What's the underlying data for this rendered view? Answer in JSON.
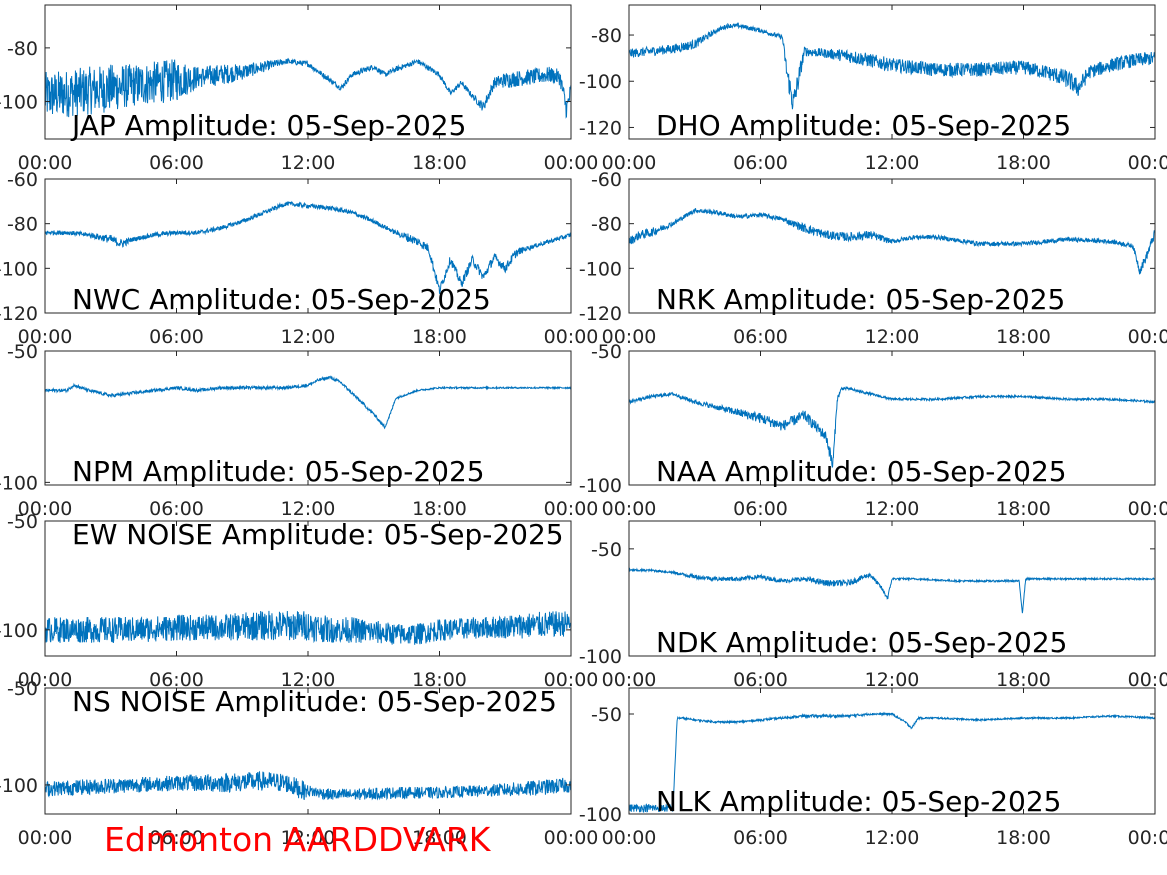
{
  "footer_label": "Edmonton AARDDVARK",
  "colors": {
    "trace": "#0072bd",
    "axes": "#262626",
    "footer": "#ff0000"
  },
  "chart_data": [
    {
      "id": "jap",
      "type": "line",
      "title": "JAP Amplitude: 05-Sep-2025",
      "xlim": [
        0,
        24
      ],
      "ylim": [
        -114,
        -64
      ],
      "x_ticks": [
        "00:00",
        "06:00",
        "12:00",
        "18:00",
        "00:00"
      ],
      "y_ticks": [
        {
          "v": -80,
          "label": "-80"
        },
        {
          "v": -100,
          "label": "-100"
        }
      ],
      "x": [
        0,
        1,
        2,
        3,
        4,
        5,
        6,
        7,
        8,
        9,
        10,
        11,
        12,
        13,
        13.5,
        14,
        15,
        15.5,
        16,
        17,
        18,
        18.5,
        19,
        19.5,
        20,
        20.5,
        21,
        22,
        23,
        23.5,
        23.8,
        24
      ],
      "y": [
        -98,
        -97,
        -96,
        -95,
        -94,
        -93,
        -92,
        -91,
        -90,
        -89,
        -87,
        -85,
        -86,
        -92,
        -95,
        -90,
        -87,
        -90,
        -88,
        -85,
        -90,
        -97,
        -93,
        -98,
        -102,
        -93,
        -92,
        -91,
        -90,
        -91,
        -103,
        -96
      ],
      "noise": [
        9,
        9,
        9,
        9,
        8,
        8,
        8,
        4,
        4,
        3,
        2,
        1,
        1,
        1,
        1,
        1,
        1,
        1,
        1,
        1,
        1,
        1,
        1,
        1,
        2,
        2,
        3,
        3,
        3,
        3,
        4,
        4
      ]
    },
    {
      "id": "dho",
      "type": "line",
      "title": "DHO Amplitude: 05-Sep-2025",
      "xlim": [
        0,
        24
      ],
      "ylim": [
        -125,
        -67
      ],
      "x_ticks": [
        "00:00",
        "06:00",
        "12:00",
        "18:00",
        "00:00"
      ],
      "y_ticks": [
        {
          "v": -80,
          "label": "-80"
        },
        {
          "v": -100,
          "label": "-100"
        },
        {
          "v": -120,
          "label": "-120"
        }
      ],
      "x": [
        0,
        1,
        2,
        3,
        4,
        4.5,
        5,
        6,
        7,
        7.2,
        7.5,
        7.8,
        8,
        9,
        10,
        11,
        12,
        14,
        16,
        18,
        19,
        20,
        20.5,
        21,
        22,
        23,
        24
      ],
      "y": [
        -88,
        -87,
        -86,
        -84,
        -78,
        -76,
        -76,
        -78,
        -81,
        -96,
        -110,
        -96,
        -87,
        -88,
        -89,
        -91,
        -93,
        -95,
        -95,
        -94,
        -96,
        -99,
        -103,
        -96,
        -93,
        -91,
        -90
      ],
      "noise": [
        2,
        2,
        2,
        2,
        1,
        1,
        1,
        1,
        1,
        4,
        6,
        4,
        2,
        2,
        3,
        3,
        3,
        3,
        3,
        3,
        3,
        4,
        4,
        3,
        3,
        3,
        3
      ]
    },
    {
      "id": "nwc",
      "type": "line",
      "title": "NWC Amplitude: 05-Sep-2025",
      "xlim": [
        0,
        24
      ],
      "ylim": [
        -120,
        -60
      ],
      "x_ticks": [
        "00:00",
        "06:00",
        "12:00",
        "18:00",
        "00:00"
      ],
      "y_ticks": [
        {
          "v": -60,
          "label": "-60"
        },
        {
          "v": -80,
          "label": "-80"
        },
        {
          "v": -100,
          "label": "-100"
        },
        {
          "v": -120,
          "label": "-120"
        }
      ],
      "x": [
        0,
        1,
        2,
        3,
        3.5,
        4,
        5,
        6,
        7,
        8,
        9,
        10,
        11,
        12,
        13,
        14,
        15,
        16,
        16.5,
        17,
        17.5,
        18,
        18.5,
        19,
        19.5,
        20,
        20.5,
        21,
        21.5,
        22,
        23,
        24
      ],
      "y": [
        -84,
        -84,
        -85,
        -87,
        -89,
        -87,
        -85,
        -84,
        -84,
        -82,
        -79,
        -75,
        -71,
        -72,
        -73,
        -75,
        -79,
        -84,
        -86,
        -88,
        -91,
        -110,
        -96,
        -107,
        -96,
        -104,
        -95,
        -100,
        -93,
        -91,
        -88,
        -85
      ],
      "noise": [
        1,
        1,
        1,
        2,
        2,
        1,
        1,
        1,
        1,
        1,
        1,
        1,
        1,
        1,
        1,
        1,
        1,
        1,
        2,
        2,
        2,
        2,
        2,
        2,
        2,
        2,
        2,
        2,
        2,
        1,
        1,
        1
      ]
    },
    {
      "id": "nrk",
      "type": "line",
      "title": "NRK Amplitude: 05-Sep-2025",
      "xlim": [
        0,
        24
      ],
      "ylim": [
        -120,
        -60
      ],
      "x_ticks": [
        "00:00",
        "06:00",
        "12:00",
        "18:00",
        "00:00"
      ],
      "y_ticks": [
        {
          "v": -60,
          "label": "-60"
        },
        {
          "v": -80,
          "label": "-80"
        },
        {
          "v": -100,
          "label": "-100"
        },
        {
          "v": -120,
          "label": "-120"
        }
      ],
      "x": [
        0,
        0.5,
        1,
        2,
        3,
        4,
        5,
        6,
        7,
        8,
        9,
        10,
        11,
        12,
        13,
        14,
        16,
        18,
        20,
        22,
        23,
        23.3,
        23.6,
        24
      ],
      "y": [
        -88,
        -85,
        -84,
        -80,
        -74,
        -75,
        -77,
        -76,
        -78,
        -82,
        -85,
        -86,
        -85,
        -88,
        -86,
        -86,
        -89,
        -89,
        -87,
        -88,
        -90,
        -101,
        -95,
        -84
      ],
      "noise": [
        2,
        2,
        2,
        1,
        1,
        1,
        1,
        1,
        1,
        2,
        2,
        2,
        2,
        1,
        1,
        1,
        1,
        1,
        1,
        1,
        1,
        2,
        2,
        2
      ]
    },
    {
      "id": "npm",
      "type": "line",
      "title": "NPM Amplitude: 05-Sep-2025",
      "xlim": [
        0,
        24
      ],
      "ylim": [
        -101,
        -50
      ],
      "x_ticks": [
        "00:00",
        "06:00",
        "12:00",
        "18:00",
        "00:00"
      ],
      "y_ticks": [
        {
          "v": -50,
          "label": "-50"
        },
        {
          "v": -100,
          "label": "-100"
        }
      ],
      "x": [
        0,
        1,
        1.3,
        2,
        3,
        4,
        5,
        6,
        7,
        8,
        9,
        10,
        11,
        12,
        12.5,
        13,
        13.5,
        14,
        14.5,
        15,
        15.5,
        15.8,
        16,
        17,
        18,
        19,
        20,
        21,
        22,
        23,
        24
      ],
      "y": [
        -65,
        -65,
        -63,
        -65,
        -67,
        -66,
        -65,
        -64,
        -65,
        -64,
        -64,
        -64,
        -64,
        -63,
        -61,
        -60,
        -62,
        -66,
        -70,
        -74,
        -79,
        -73,
        -68,
        -65,
        -64,
        -64,
        -64,
        -64,
        -64,
        -64,
        -64
      ],
      "noise": [
        0.6,
        0.6,
        0.6,
        0.6,
        0.6,
        0.6,
        0.6,
        0.6,
        0.6,
        0.6,
        0.6,
        0.6,
        0.6,
        0.6,
        0.6,
        0.6,
        0.6,
        0.6,
        0.6,
        0.6,
        0.6,
        0.6,
        0.4,
        0.3,
        0.3,
        0.3,
        0.3,
        0.3,
        0.3,
        0.3,
        0.3
      ]
    },
    {
      "id": "naa",
      "type": "line",
      "title": "NAA Amplitude: 05-Sep-2025",
      "xlim": [
        0,
        24
      ],
      "ylim": [
        -100,
        -50
      ],
      "x_ticks": [
        "00:00",
        "06:00",
        "12:00",
        "18:00",
        "00:00"
      ],
      "y_ticks": [
        {
          "v": -50,
          "label": "-50"
        },
        {
          "v": -100,
          "label": "-100"
        }
      ],
      "x": [
        0,
        1,
        2,
        3,
        4,
        5,
        6,
        7,
        7.5,
        8,
        8.5,
        9,
        9.3,
        9.5,
        9.7,
        10,
        11,
        12,
        14,
        16,
        18,
        20,
        22,
        24
      ],
      "y": [
        -69,
        -67,
        -66,
        -69,
        -71,
        -73,
        -75,
        -78,
        -76,
        -74,
        -78,
        -82,
        -93,
        -68,
        -64,
        -64,
        -66,
        -68,
        -68,
        -67,
        -67,
        -68,
        -68,
        -69
      ],
      "noise": [
        0.6,
        0.6,
        0.6,
        0.8,
        1,
        1.5,
        2,
        2,
        2,
        2,
        2,
        2,
        3,
        1,
        0.6,
        0.5,
        0.5,
        0.4,
        0.4,
        0.4,
        0.4,
        0.4,
        0.4,
        0.4
      ]
    },
    {
      "id": "ew",
      "type": "line",
      "title": "EW NOISE Amplitude: 05-Sep-2025",
      "xlim": [
        0,
        24
      ],
      "ylim": [
        -112,
        -50
      ],
      "x_ticks": [
        "00:00",
        "06:00",
        "12:00",
        "18:00",
        "00:00"
      ],
      "y_ticks": [
        {
          "v": -50,
          "label": "-50"
        },
        {
          "v": -100,
          "label": "-100"
        }
      ],
      "x": [
        0,
        2,
        4,
        6,
        8,
        10,
        12,
        13,
        14,
        16,
        17,
        18,
        20,
        22,
        24
      ],
      "y": [
        -100,
        -100,
        -100,
        -99,
        -99,
        -98,
        -98,
        -100,
        -100,
        -102,
        -102,
        -100,
        -99,
        -98,
        -97
      ],
      "noise": [
        6,
        6,
        6,
        6,
        6,
        7,
        7,
        6,
        6,
        5,
        5,
        5,
        5,
        6,
        6
      ]
    },
    {
      "id": "ndk",
      "type": "line",
      "title": "NDK Amplitude: 05-Sep-2025",
      "xlim": [
        0,
        24
      ],
      "ylim": [
        -100,
        -37
      ],
      "x_ticks": [
        "00:00",
        "06:00",
        "12:00",
        "18:00",
        "00:00"
      ],
      "y_ticks": [
        {
          "v": -50,
          "label": "-50"
        },
        {
          "v": -100,
          "label": "-100"
        }
      ],
      "x": [
        0,
        1,
        2,
        3,
        4,
        5,
        6,
        7,
        8,
        9,
        10,
        11,
        11.5,
        11.8,
        12,
        13,
        15,
        17,
        17.8,
        17.95,
        18.1,
        19,
        21,
        24
      ],
      "y": [
        -60,
        -60,
        -61,
        -63,
        -64,
        -64,
        -63,
        -65,
        -64,
        -66,
        -66,
        -62,
        -68,
        -73,
        -64,
        -64,
        -65,
        -65,
        -65,
        -80,
        -64,
        -64,
        -64,
        -64
      ],
      "noise": [
        0.5,
        0.5,
        0.5,
        1,
        1,
        1,
        1,
        1,
        1,
        1.5,
        1.5,
        1,
        1,
        1,
        0.5,
        0.4,
        0.4,
        0.4,
        0.4,
        0.4,
        0.4,
        0.4,
        0.4,
        0.4
      ]
    },
    {
      "id": "ns",
      "type": "line",
      "title": "NS NOISE Amplitude: 05-Sep-2025",
      "xlim": [
        0,
        24
      ],
      "ylim": [
        -115,
        -50
      ],
      "x_ticks": [
        "00:00",
        "06:00",
        "12:00",
        "18:00",
        "00:00"
      ],
      "y_ticks": [
        {
          "v": -50,
          "label": "-50"
        },
        {
          "v": -100,
          "label": "-100"
        }
      ],
      "x": [
        0,
        2,
        4,
        6,
        8,
        10,
        11,
        11.8,
        12,
        13,
        14,
        16,
        18,
        20,
        22,
        24
      ],
      "y": [
        -102,
        -101,
        -100,
        -99,
        -99,
        -98,
        -99,
        -103,
        -103,
        -105,
        -105,
        -104,
        -104,
        -103,
        -102,
        -100
      ],
      "noise": [
        4,
        4,
        4,
        4,
        5,
        5,
        5,
        5,
        3,
        3,
        3,
        3,
        3,
        3,
        4,
        4
      ]
    },
    {
      "id": "nlk",
      "type": "line",
      "title": "NLK Amplitude: 05-Sep-2025",
      "xlim": [
        0,
        24
      ],
      "ylim": [
        -100,
        -37
      ],
      "x_ticks": [
        "00:00",
        "06:00",
        "12:00",
        "18:00",
        "00:00"
      ],
      "y_ticks": [
        {
          "v": -50,
          "label": "-50"
        },
        {
          "v": -100,
          "label": "-100"
        }
      ],
      "x": [
        0,
        1,
        2,
        2.1,
        2.2,
        2.4,
        3,
        4,
        5,
        6,
        7,
        8,
        9,
        10,
        11,
        12,
        12.6,
        12.9,
        13.2,
        14,
        16,
        18,
        20,
        22,
        24
      ],
      "y": [
        -97,
        -97,
        -97,
        -75,
        -52,
        -52,
        -53,
        -54,
        -54,
        -53,
        -52,
        -51,
        -51,
        -51,
        -50,
        -50,
        -54,
        -57,
        -52,
        -52,
        -53,
        -52,
        -52,
        -51,
        -52
      ],
      "noise": [
        2,
        2,
        2,
        2,
        0.5,
        0.5,
        0.5,
        0.5,
        0.5,
        0.5,
        0.5,
        0.7,
        0.7,
        0.7,
        0.5,
        0.5,
        0.5,
        0.5,
        0.5,
        0.4,
        0.4,
        0.4,
        0.4,
        0.4,
        0.4
      ]
    }
  ]
}
